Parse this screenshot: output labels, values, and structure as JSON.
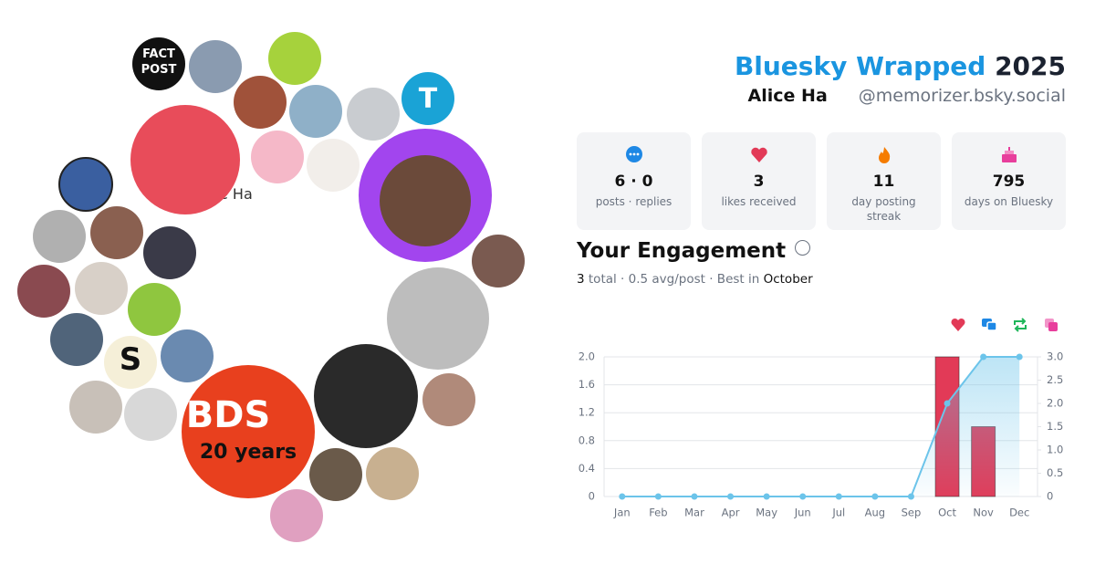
{
  "header": {
    "title": "Bluesky Wrapped",
    "year": "2025",
    "name": "Alice Ha",
    "handle": "@memorizer.bsky.social"
  },
  "avatars": {
    "name_fragment": "e Ha",
    "fact_post_1": "FACT",
    "fact_post_2": "POST",
    "letter": "T",
    "s_logo": "S",
    "bds_1": "BDS",
    "bds_2": "20 years"
  },
  "stats": [
    {
      "value": "6 · 0",
      "label": "posts · replies"
    },
    {
      "value": "3",
      "label": "likes received"
    },
    {
      "value": "11",
      "label": "day posting streak"
    },
    {
      "value": "795",
      "label": "days on Bluesky"
    }
  ],
  "engagement": {
    "title": "Your Engagement",
    "total": "3",
    "total_text": "total · 0.5 avg/post · Best in",
    "best": "October"
  },
  "chart_data": {
    "type": "bar",
    "categories": [
      "Jan",
      "Feb",
      "Mar",
      "Apr",
      "May",
      "Jun",
      "Jul",
      "Aug",
      "Sep",
      "Oct",
      "Nov",
      "Dec"
    ],
    "series": [
      {
        "type": "bar",
        "color": "#e23a57",
        "values": [
          0,
          0,
          0,
          0,
          0,
          0,
          0,
          0,
          0,
          2,
          1,
          0
        ]
      },
      {
        "type": "line",
        "axis": "y2",
        "color": "#6cc4ea",
        "values": [
          0,
          0,
          0,
          0,
          0,
          0,
          0,
          0,
          0,
          2,
          3,
          3
        ]
      }
    ],
    "legend_colors": [
      "#e23a57",
      "#1e88e5",
      "#1fb65a",
      "#e83e9c"
    ],
    "ylim": [
      0,
      2
    ],
    "yticks": [
      0,
      0.4,
      0.8,
      1.2,
      1.6,
      {
        "value": 2,
        "label": "2.0"
      }
    ],
    "y2lim": [
      0,
      3
    ],
    "y2ticks": [
      0,
      0.5,
      {
        "value": 1,
        "label": "1.0"
      },
      1.5,
      {
        "value": 2,
        "label": "2.0"
      },
      2.5,
      {
        "value": 3,
        "label": "3.0"
      }
    ],
    "grid": true
  }
}
